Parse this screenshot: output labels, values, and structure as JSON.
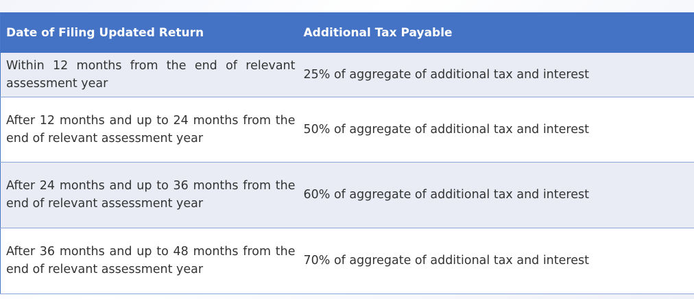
{
  "table": {
    "headers": [
      "Date of Filing Updated Return",
      "Additional Tax Payable"
    ],
    "rows": [
      {
        "date": "Within 12 months from the end of relevant assessment year",
        "tax": "25% of aggregate of additional tax and interest"
      },
      {
        "date": "After 12 months and up to 24 months from the end of relevant assessment year",
        "tax": "50% of aggregate of additional tax and interest"
      },
      {
        "date": "After 24 months and up to 36 months from the end of relevant assessment year",
        "tax": "60% of aggregate of additional tax and interest"
      },
      {
        "date": "After 36 months and up to 48 months from the end of relevant assessment year",
        "tax": "70% of aggregate of additional tax and interest"
      }
    ]
  },
  "colors": {
    "header_bg": "#4472c4",
    "band_bg": "#e9ecf5",
    "row_border": "#8aa6d8"
  }
}
